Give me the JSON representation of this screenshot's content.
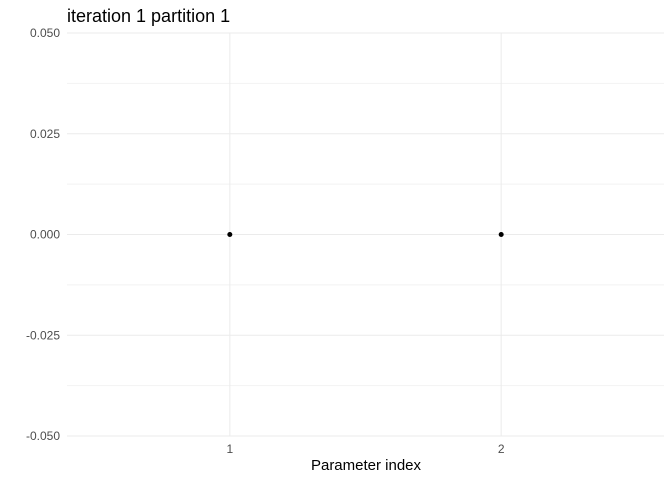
{
  "chart_data": {
    "type": "scatter",
    "title": "iteration 1 partition 1",
    "xlabel": "Parameter index",
    "ylabel": "",
    "x_tick_labels": [
      "1",
      "2"
    ],
    "x_ticks": [
      1,
      2
    ],
    "xlim": [
      0.4,
      2.6
    ],
    "y_ticks": [
      -0.05,
      -0.025,
      0,
      0.025,
      0.05
    ],
    "y_tick_labels": [
      "-0.050",
      "-0.025",
      "0.000",
      "0.025",
      "0.050"
    ],
    "ylim": [
      -0.05,
      0.05
    ],
    "grid": true,
    "legend": "none",
    "point_color": "#000000",
    "series": [
      {
        "x": [
          1,
          2
        ],
        "y": [
          0,
          0
        ]
      }
    ]
  }
}
